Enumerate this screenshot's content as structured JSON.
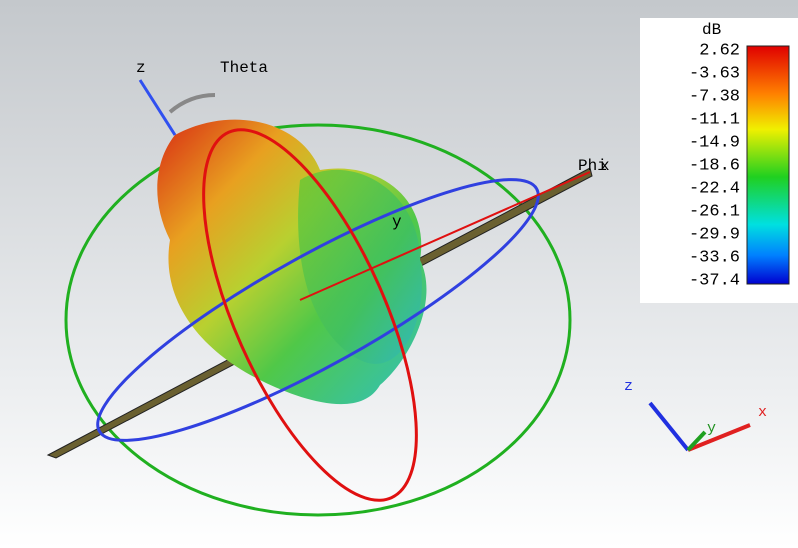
{
  "scene": {
    "axis_labels": {
      "z": "z",
      "theta": "Theta",
      "phi": "Phi",
      "x": "x",
      "y": "y"
    },
    "triad": {
      "z": "z",
      "y": "y",
      "x": "x"
    }
  },
  "colorbar": {
    "title": "dB",
    "ticks": [
      2.62,
      -3.63,
      -7.38,
      -11.1,
      -14.9,
      -18.6,
      -22.4,
      -26.1,
      -29.9,
      -33.6,
      -37.4
    ]
  }
}
